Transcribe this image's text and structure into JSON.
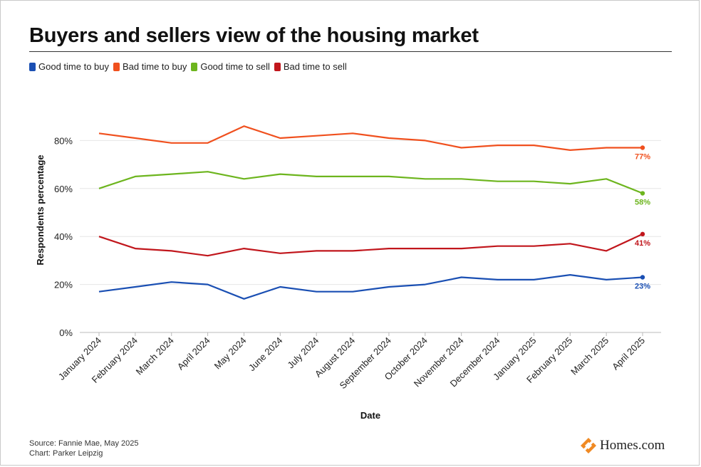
{
  "header": {
    "title": "Buyers and sellers view of the housing market"
  },
  "footer": {
    "source": "Source: Fannie Mae, May 2025",
    "credit": "Chart: Parker Leipzig"
  },
  "brand": {
    "name": "Homes.com",
    "icon": "homes-logo-icon",
    "color": "#F08A24"
  },
  "chart_data": {
    "type": "line",
    "title": "Buyers and sellers view of the housing market",
    "xlabel": "Date",
    "ylabel": "Respondents percentage",
    "ylim": [
      0,
      100
    ],
    "yticks": [
      "0%",
      "20%",
      "40%",
      "60%",
      "80%"
    ],
    "ytick_values": [
      0,
      20,
      40,
      60,
      80
    ],
    "legend_position": "top-left",
    "grid": true,
    "x": [
      "January 2024",
      "February 2024",
      "March 2024",
      "April 2024",
      "May 2024",
      "June 2024",
      "July 2024",
      "August 2024",
      "September 2024",
      "October 2024",
      "November 2024",
      "December 2024",
      "January 2025",
      "February 2025",
      "March 2025",
      "April 2025"
    ],
    "series": [
      {
        "name": "Good time to buy",
        "color": "#1A4FB3",
        "values": [
          17,
          19,
          21,
          20,
          14,
          19,
          17,
          17,
          19,
          20,
          23,
          22,
          22,
          24,
          22,
          23
        ],
        "end_label": "23%"
      },
      {
        "name": "Bad time to buy",
        "color": "#F0501E",
        "values": [
          83,
          81,
          79,
          79,
          86,
          81,
          82,
          83,
          81,
          80,
          77,
          78,
          78,
          76,
          77,
          77
        ],
        "end_label": "77%"
      },
      {
        "name": "Good time to sell",
        "color": "#6DB51E",
        "values": [
          60,
          65,
          66,
          67,
          64,
          66,
          65,
          65,
          65,
          64,
          64,
          63,
          63,
          62,
          64,
          58
        ],
        "end_label": "58%"
      },
      {
        "name": "Bad time to sell",
        "color": "#C1161C",
        "values": [
          40,
          35,
          34,
          32,
          35,
          33,
          34,
          34,
          35,
          35,
          35,
          36,
          36,
          37,
          34,
          41
        ],
        "end_label": "41%"
      }
    ]
  }
}
